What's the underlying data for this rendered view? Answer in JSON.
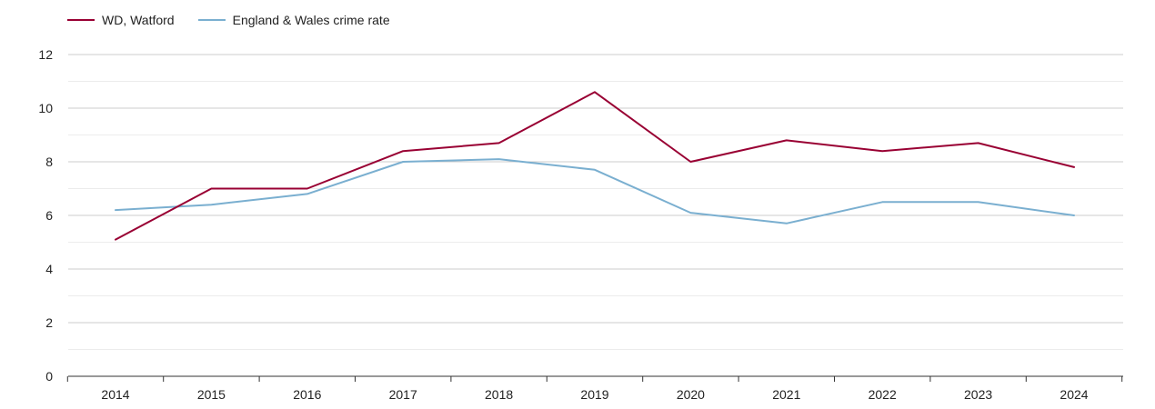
{
  "chart_data": {
    "type": "line",
    "categories": [
      "2014",
      "2015",
      "2016",
      "2017",
      "2018",
      "2019",
      "2020",
      "2021",
      "2022",
      "2023",
      "2024"
    ],
    "series": [
      {
        "name": "WD, Watford",
        "color": "#990033",
        "values": [
          5.1,
          7.0,
          7.0,
          8.4,
          8.7,
          10.6,
          8.0,
          8.8,
          8.4,
          8.7,
          7.8
        ]
      },
      {
        "name": "England & Wales crime rate",
        "color": "#7aafd0",
        "values": [
          6.2,
          6.4,
          6.8,
          8.0,
          8.1,
          7.7,
          6.1,
          5.7,
          6.5,
          6.5,
          6.0
        ]
      }
    ],
    "y_ticks": [
      "0",
      "2",
      "4",
      "6",
      "8",
      "10",
      "12"
    ],
    "ylim": [
      0,
      12
    ],
    "grid": true,
    "legend_position": "top-left"
  }
}
